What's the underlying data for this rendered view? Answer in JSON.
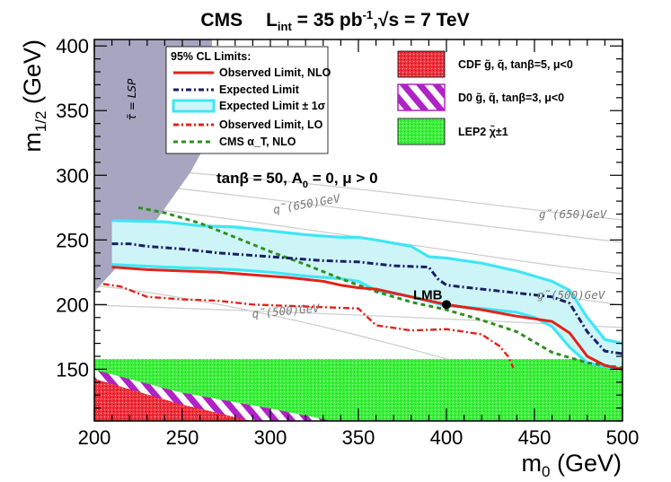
{
  "chart_data": {
    "type": "line",
    "title": "CMS    L_int = 35 pb^-1, √s = 7 TeV",
    "title_parts": {
      "experiment": "CMS",
      "lumi_sym": "L",
      "lumi_sub": "int",
      "lumi_val": " = 35 pb",
      "lumi_exp": "-1",
      "energy": ",√s = 7 TeV"
    },
    "xlabel": "m_0 (GeV)",
    "xlabel_parts": {
      "sym": "m",
      "sub": "0",
      "unit": " (GeV)"
    },
    "ylabel": "m_1/2 (GeV)",
    "ylabel_parts": {
      "sym": "m",
      "sub": "1/2",
      "unit": " (GeV)"
    },
    "xlim": [
      200,
      500
    ],
    "ylim": [
      110,
      405
    ],
    "xticks": [
      200,
      250,
      300,
      350,
      400,
      450,
      500
    ],
    "yticks": [
      150,
      200,
      250,
      300,
      350,
      400
    ],
    "params_label": "tanβ = 50, A  = 0, μ > 0",
    "params_parts": {
      "a": "tanβ = 50, A",
      "sub": "0",
      "b": " = 0, μ > 0"
    },
    "legend_title": "95% CL Limits:",
    "legend": [
      {
        "label": "Observed Limit, NLO",
        "color": "#e3221b",
        "style": "solid"
      },
      {
        "label": "Expected Limit",
        "color": "#1a1f66",
        "style": "dashdot"
      },
      {
        "label": "Expected Limit ± 1σ",
        "color": "#3fe6f5",
        "style": "band"
      },
      {
        "label": "Observed Limit, LO",
        "color": "#e3221b",
        "style": "dashdot"
      },
      {
        "label": "CMS α_T, NLO",
        "color": "#2e8f1e",
        "style": "dashed"
      }
    ],
    "legend2": [
      {
        "label": "CDF  g̃, q̃, tanβ=5, μ<0",
        "color": "#f0323c"
      },
      {
        "label": "D0  g̃, q̃, tanβ=3, μ<0",
        "color": "#b022c6"
      },
      {
        "label": "LEP2  χ̃±1",
        "color": "#3cf03c"
      }
    ],
    "annotations": {
      "stau": "τ̃ = LSP",
      "lmb": "LMB",
      "lmb_point": [
        400,
        200
      ],
      "iso_labels": [
        "q̃(650)GeV",
        "g̃(650)GeV",
        "q̃(500)GeV",
        "g̃(500)GeV"
      ]
    },
    "series": [
      {
        "name": "Observed Limit, NLO",
        "x": [
          210,
          230,
          250,
          270,
          290,
          310,
          330,
          340,
          350,
          360,
          380,
          400,
          420,
          440,
          450,
          460,
          470,
          480,
          490,
          500
        ],
        "y": [
          229,
          227,
          226,
          225,
          223,
          221,
          218,
          215,
          213,
          212,
          206,
          200,
          196,
          191,
          189,
          187,
          178,
          160,
          153,
          150
        ]
      },
      {
        "name": "Expected Limit",
        "x": [
          210,
          220,
          230,
          250,
          270,
          290,
          310,
          330,
          350,
          370,
          390,
          395,
          400,
          420,
          440,
          460,
          470,
          480,
          490,
          500
        ],
        "y": [
          247,
          247,
          245,
          243,
          240,
          238,
          236,
          234,
          233,
          230,
          229,
          220,
          215,
          212,
          209,
          206,
          201,
          179,
          164,
          162
        ]
      },
      {
        "name": "Expected Limit ± 1σ upper",
        "x": [
          210,
          240,
          260,
          280,
          300,
          320,
          340,
          350,
          360,
          380,
          390,
          400,
          420,
          440,
          450,
          460,
          470,
          480,
          490,
          500
        ],
        "y": [
          265,
          264,
          261,
          260,
          257,
          254,
          252,
          252,
          250,
          245,
          237,
          236,
          232,
          226,
          222,
          218,
          211,
          190,
          173,
          170
        ]
      },
      {
        "name": "Expected Limit ± 1σ lower",
        "x": [
          210,
          240,
          260,
          280,
          300,
          320,
          340,
          350,
          360,
          380,
          400,
          420,
          440,
          450,
          460,
          470,
          480,
          490,
          500
        ],
        "y": [
          231,
          229,
          228,
          227,
          225,
          222,
          220,
          218,
          211,
          206,
          199,
          197,
          194,
          190,
          183,
          167,
          155,
          152,
          150
        ]
      },
      {
        "name": "Observed Limit, LO",
        "x": [
          205,
          215,
          230,
          250,
          270,
          290,
          310,
          330,
          350,
          360,
          380,
          400,
          420,
          430,
          435,
          438
        ],
        "y": [
          216,
          214,
          206,
          204,
          203,
          200,
          199,
          198,
          197,
          184,
          180,
          181,
          177,
          168,
          160,
          151
        ]
      },
      {
        "name": "CMS α_T, NLO",
        "x": [
          225,
          240,
          260,
          280,
          300,
          320,
          340,
          360,
          380,
          400,
          420,
          440,
          460,
          480,
          500
        ],
        "y": [
          275,
          271,
          263,
          252,
          241,
          231,
          220,
          210,
          202,
          196,
          188,
          179,
          163,
          155,
          151
        ]
      }
    ]
  }
}
